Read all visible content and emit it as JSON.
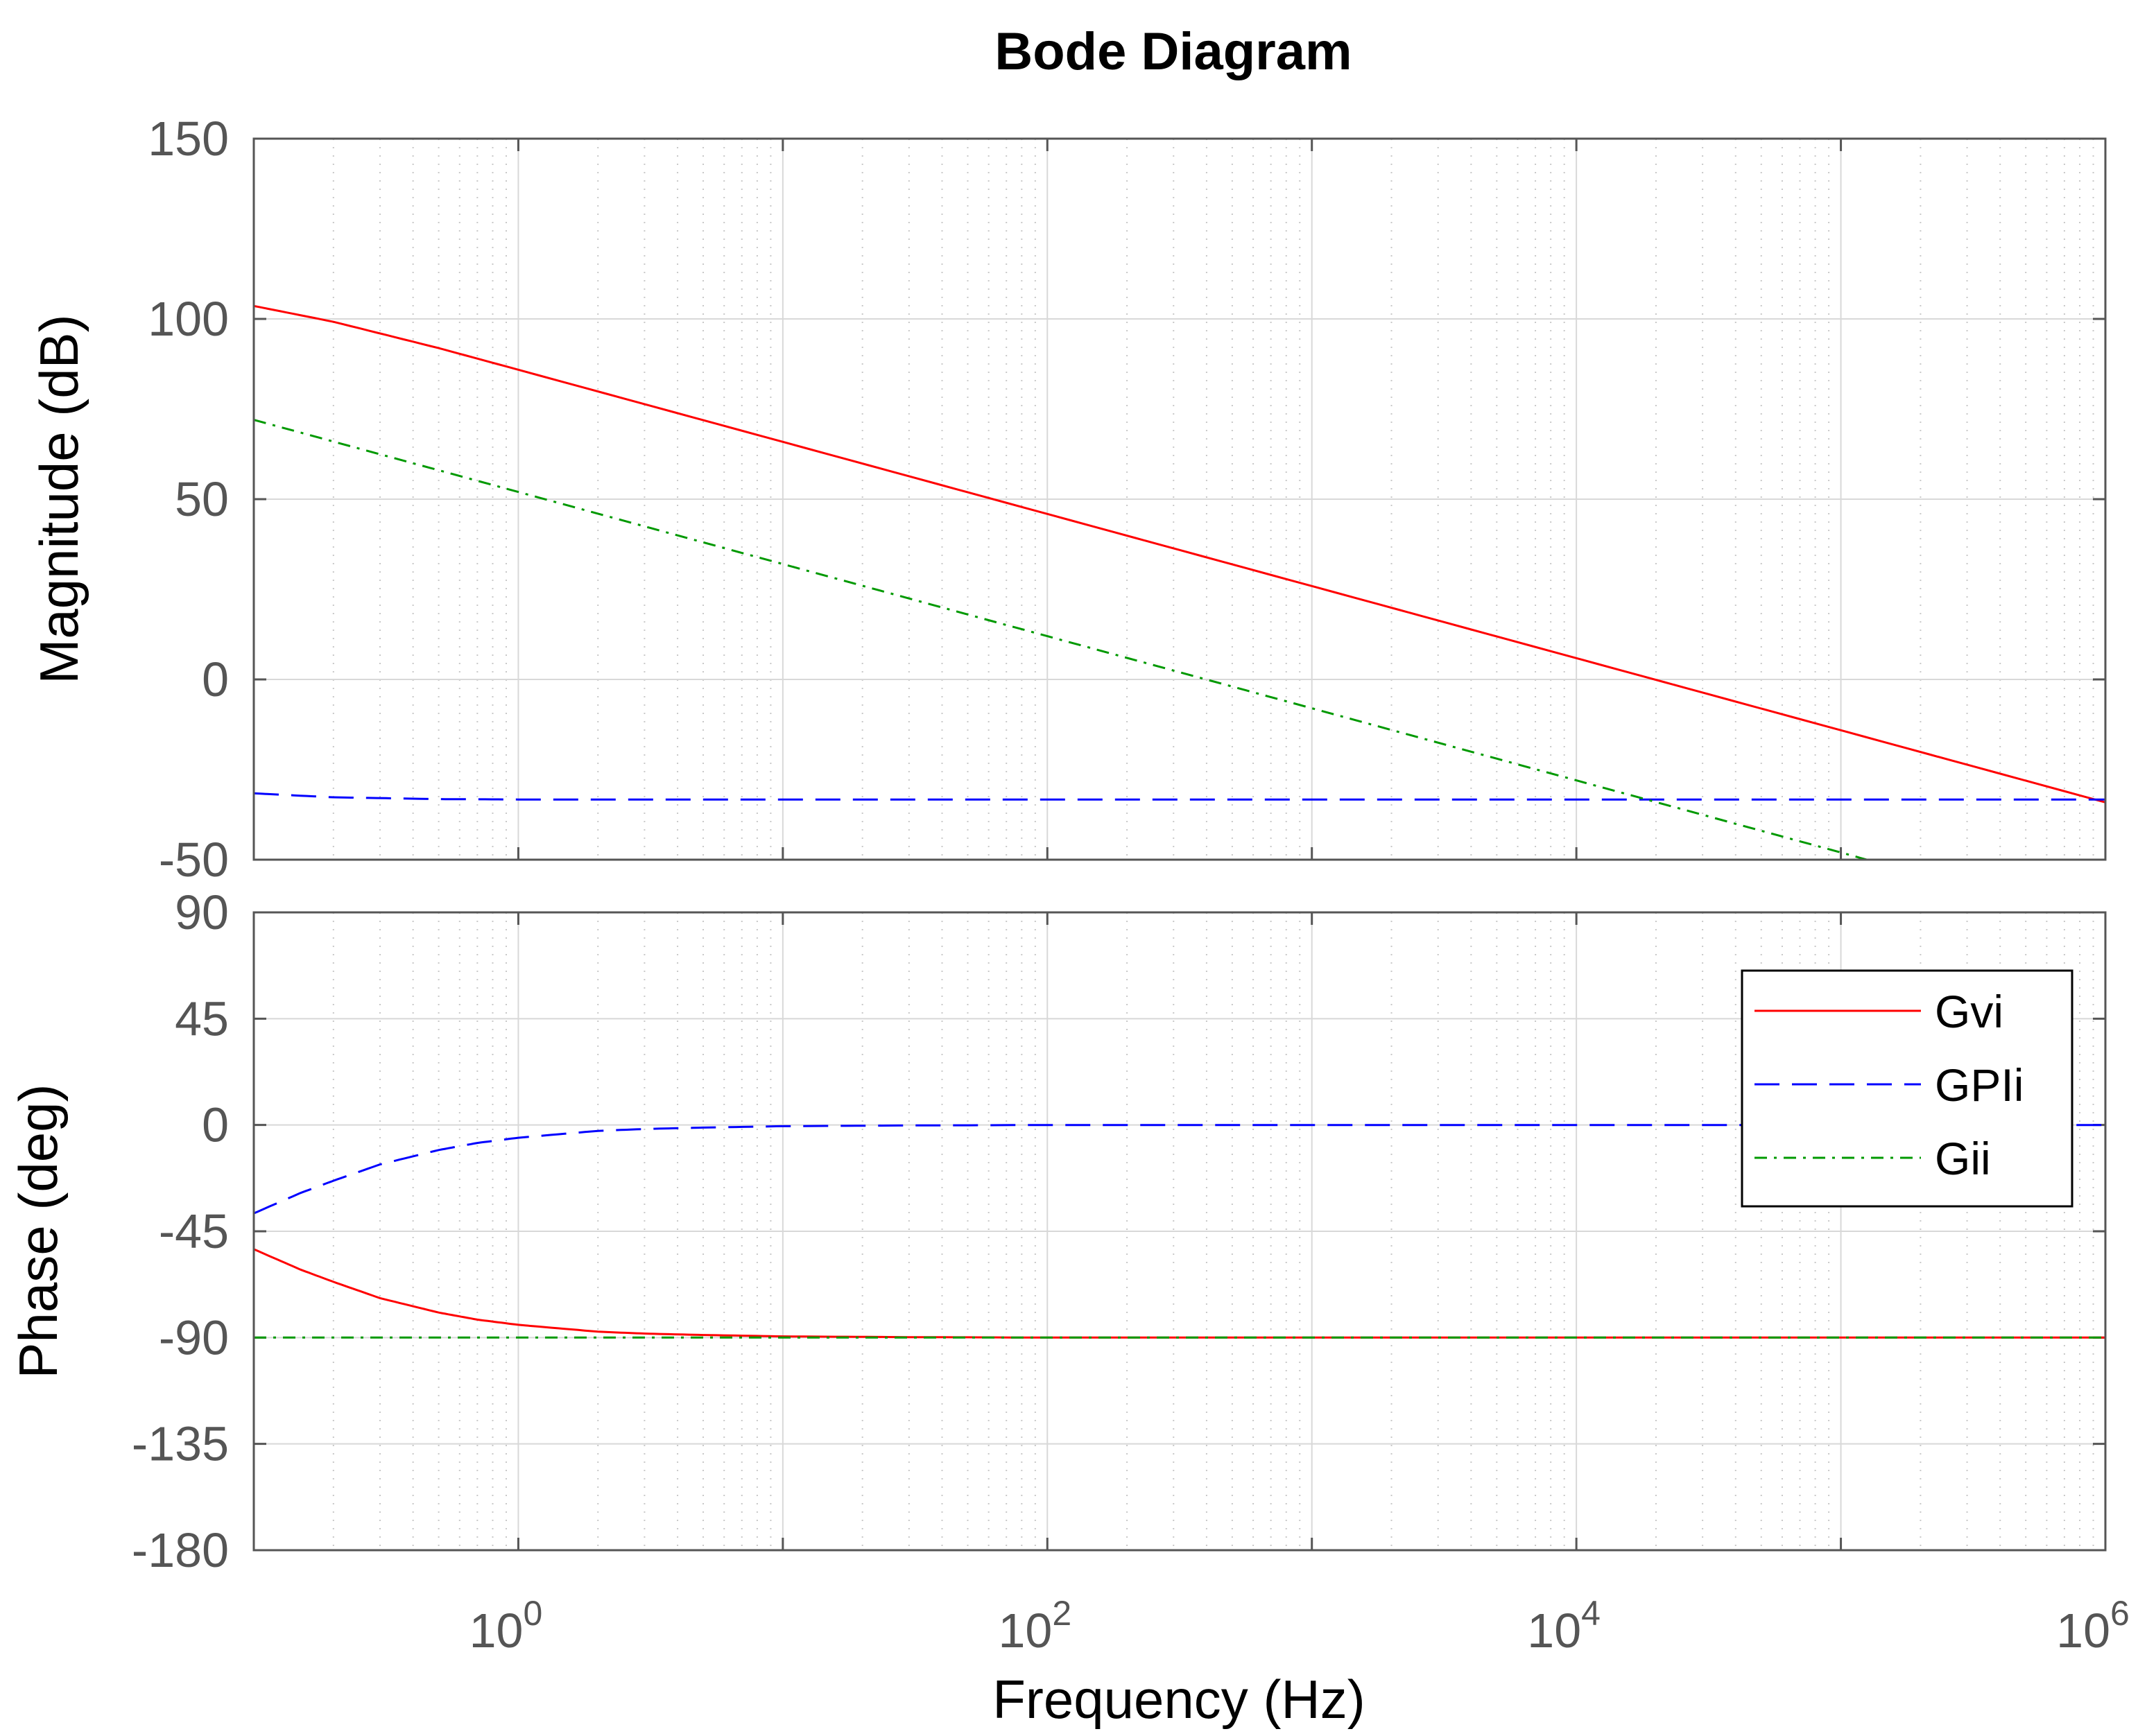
{
  "chart_data": {
    "type": "line",
    "title": "Bode Diagram",
    "xlabel": "Frequency  (Hz)",
    "xscale": "log",
    "xlim": [
      0.1,
      1000000
    ],
    "x_ticks": [
      {
        "value": 1,
        "base": "10",
        "exp": "0"
      },
      {
        "value": 100,
        "base": "10",
        "exp": "2"
      },
      {
        "value": 10000,
        "base": "10",
        "exp": "4"
      },
      {
        "value": 1000000,
        "base": "10",
        "exp": "6"
      }
    ],
    "grid": true,
    "legend_position": "top-right of phase panel",
    "legend": [
      "Gvi",
      "GPIi",
      "Gii"
    ],
    "series_styles": [
      {
        "name": "Gvi",
        "color": "#ff0000",
        "dash": "solid"
      },
      {
        "name": "GPIi",
        "color": "#0000ff",
        "dash": "dashed"
      },
      {
        "name": "Gii",
        "color": "#009900",
        "dash": "dashdot"
      }
    ],
    "subplots": [
      {
        "id": "magnitude",
        "ylabel": "Magnitude (dB)",
        "ylim": [
          -50,
          150
        ],
        "yticks": [
          "150",
          "100",
          "50",
          "0",
          "-50"
        ],
        "yticks_values": [
          150,
          100,
          50,
          0,
          -50
        ],
        "series": [
          {
            "name": "Gvi",
            "x": [
              0.1,
              0.2,
              0.5,
              1,
              10,
              100,
              1000,
              10000,
              100000,
              1000000
            ],
            "y": [
              103.6,
              99.2,
              91.9,
              85.9,
              65.9,
              45.9,
              25.9,
              5.9,
              -14.1,
              -34.1
            ]
          },
          {
            "name": "GPIi",
            "x": [
              0.1,
              0.2,
              0.5,
              1,
              10,
              100,
              1000,
              10000,
              100000,
              1000000
            ],
            "y": [
              -31.6,
              -32.7,
              -33.2,
              -33.3,
              -33.3,
              -33.3,
              -33.3,
              -33.3,
              -33.3,
              -33.3
            ]
          },
          {
            "name": "Gii",
            "x": [
              0.1,
              1,
              10,
              100,
              1000,
              10000,
              100000,
              140000
            ],
            "y": [
              72,
              52,
              32,
              12,
              -8,
              -28,
              -48,
              -51
            ]
          }
        ]
      },
      {
        "id": "phase",
        "ylabel": "Phase (deg)",
        "ylim": [
          -180,
          90
        ],
        "yticks": [
          "90",
          "45",
          "0",
          "-45",
          "-90",
          "-135",
          "-180"
        ],
        "yticks_values": [
          90,
          45,
          0,
          -45,
          -90,
          -135,
          -180
        ],
        "series": [
          {
            "name": "Gvi",
            "x": [
              0.1,
              0.15,
              0.2,
              0.3,
              0.5,
              0.7,
              1,
              2,
              3,
              5,
              10,
              30,
              100,
              1000000
            ],
            "y": [
              -52.6,
              -61.2,
              -66.4,
              -73.3,
              -79.4,
              -82.4,
              -84.6,
              -87.5,
              -88.3,
              -88.9,
              -89.5,
              -89.8,
              -90,
              -90
            ]
          },
          {
            "name": "GPIi",
            "x": [
              0.1,
              0.15,
              0.2,
              0.3,
              0.5,
              0.7,
              1,
              2,
              3,
              5,
              10,
              30,
              100,
              1000000
            ],
            "y": [
              -37.4,
              -28.8,
              -23.6,
              -16.7,
              -10.6,
              -7.6,
              -5.4,
              -2.5,
              -1.7,
              -1.1,
              -0.5,
              -0.2,
              0,
              0
            ]
          },
          {
            "name": "Gii",
            "x": [
              0.1,
              1000000
            ],
            "y": [
              -90,
              -90
            ]
          }
        ]
      }
    ]
  }
}
